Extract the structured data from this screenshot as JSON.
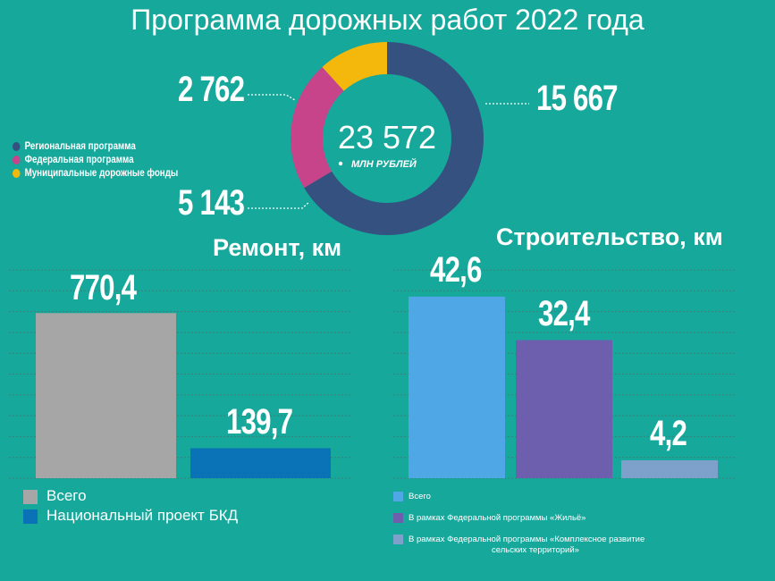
{
  "title": "Программа дорожных работ 2022 года",
  "colors": {
    "background": "#16a89b",
    "regional": "#34517f",
    "federal": "#c7448a",
    "municipal": "#f4b80d",
    "repair_total": "#a6a6a6",
    "repair_bkd": "#0a72b7",
    "build_total": "#4fa8e5",
    "build_housing": "#6e5fae",
    "build_rural": "#7ea1cc"
  },
  "donut": {
    "total_value": "23 572",
    "total_unit": "МЛН РУБЛЕЙ",
    "labels": {
      "regional": "15 667",
      "municipal": "2 762",
      "federal": "5 143"
    }
  },
  "donut_legend": [
    {
      "label": "Региональная программа",
      "color": "#34517f"
    },
    {
      "label": "Федеральная программа",
      "color": "#c7448a"
    },
    {
      "label": "Муниципальные дорожные фонды",
      "color": "#f4b80d"
    }
  ],
  "repair": {
    "title": "Ремонт, км",
    "labels": [
      "770,4",
      "139,7"
    ],
    "legend": [
      {
        "label": "Всего",
        "color": "#a6a6a6"
      },
      {
        "label": "Национальный проект БКД",
        "color": "#0a72b7"
      }
    ]
  },
  "construction": {
    "title": "Строительство, км",
    "labels": [
      "42,6",
      "32,4",
      "4,2"
    ],
    "legend": [
      {
        "label": "Всего",
        "color": "#4fa8e5"
      },
      {
        "label": "В рамках Федеральной программы  «Жильё»",
        "color": "#6e5fae"
      },
      {
        "label": "В рамках Федеральной программы «Комплексное развитие",
        "label2": "сельских территорий»",
        "color": "#7ea1cc"
      }
    ]
  },
  "chart_data": [
    {
      "type": "pie",
      "title": "Программа дорожных работ 2022 года",
      "categories": [
        "Региональная программа",
        "Федеральная программа",
        "Муниципальные дорожные фонды"
      ],
      "values": [
        15667,
        5143,
        2762
      ],
      "total": 23572,
      "unit": "МЛН РУБЛЕЙ",
      "legend_position": "left"
    },
    {
      "type": "bar",
      "title": "Ремонт, км",
      "categories": [
        "Всего",
        "Национальный проект БКД"
      ],
      "values": [
        770.4,
        139.7
      ],
      "ylim": [
        0,
        980
      ],
      "grid": true,
      "legend_position": "bottom"
    },
    {
      "type": "bar",
      "title": "Строительство, км",
      "categories": [
        "Всего",
        "В рамках Федеральной программы «Жильё»",
        "В рамках Федеральной программы «Комплексное развитие сельских территорий»"
      ],
      "values": [
        42.6,
        32.4,
        4.2
      ],
      "ylim": [
        0,
        52
      ],
      "grid": true,
      "legend_position": "bottom"
    }
  ]
}
